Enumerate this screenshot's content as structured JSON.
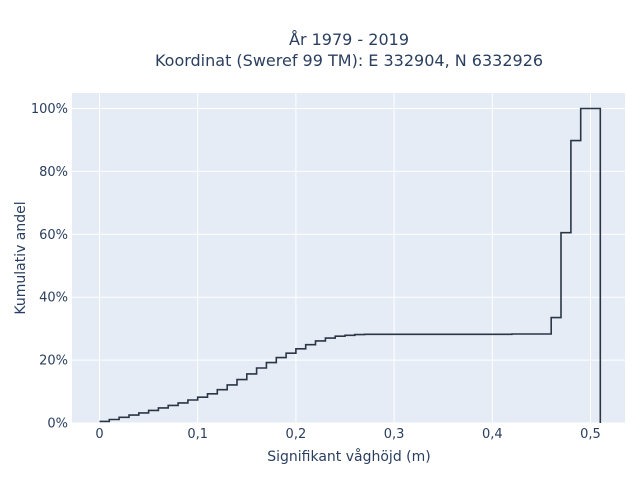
{
  "chart_data": {
    "type": "line",
    "line_shape": "step",
    "title_line1": "År 1979 - 2019",
    "title_line2": "Koordinat (Sweref 99 TM): E 332904, N 6332926",
    "xlabel": "Signifikant våghöjd (m)",
    "ylabel": "Kumulativ andel",
    "xlim": [
      -0.03,
      0.535
    ],
    "ylim": [
      0,
      1.04
    ],
    "xticks": [
      0,
      0.1,
      0.2,
      0.3,
      0.4,
      0.5
    ],
    "xtick_labels": [
      "0",
      "0,1",
      "0,2",
      "0,3",
      "0,4",
      "0,5"
    ],
    "yticks": [
      0,
      0.2,
      0.4,
      0.6,
      0.8,
      1.0
    ],
    "ytick_labels": [
      "0%",
      "20%",
      "40%",
      "60%",
      "80%",
      "100%"
    ],
    "grid": true,
    "legend": "none",
    "series": [
      {
        "color": "#2a3546",
        "x": [
          0,
          0.01,
          0.02,
          0.03,
          0.04,
          0.05,
          0.06,
          0.07,
          0.08,
          0.09,
          0.1,
          0.11,
          0.12,
          0.13,
          0.14,
          0.15,
          0.16,
          0.17,
          0.18,
          0.19,
          0.2,
          0.21,
          0.22,
          0.23,
          0.24,
          0.25,
          0.26,
          0.27,
          0.42,
          0.46,
          0.47,
          0.48,
          0.49,
          0.51
        ],
        "y": [
          0.005,
          0.011,
          0.018,
          0.025,
          0.032,
          0.04,
          0.048,
          0.056,
          0.064,
          0.073,
          0.082,
          0.093,
          0.106,
          0.121,
          0.138,
          0.156,
          0.175,
          0.192,
          0.208,
          0.222,
          0.236,
          0.249,
          0.261,
          0.27,
          0.276,
          0.279,
          0.281,
          0.282,
          0.283,
          0.335,
          0.605,
          0.898,
          1.0,
          0.0
        ]
      }
    ]
  }
}
